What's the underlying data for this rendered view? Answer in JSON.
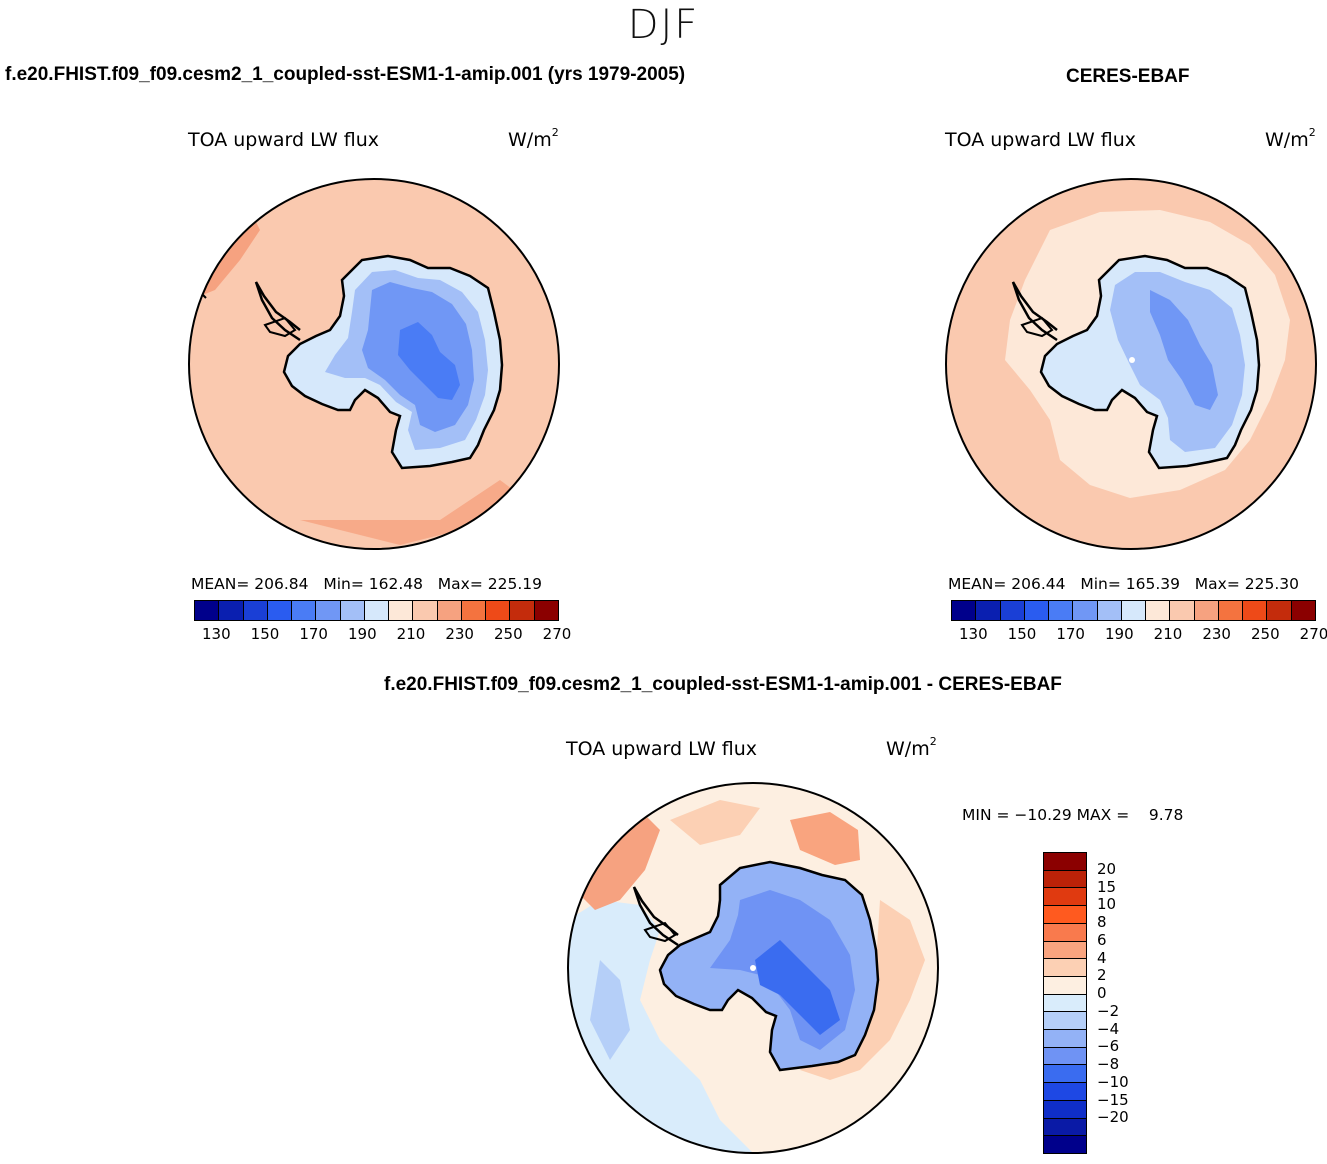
{
  "season": "DJF",
  "panels": {
    "model": {
      "title": "f.e20.FHIST.f09_f09.cesm2_1_coupled-sst-ESM1-1-amip.001 (yrs 1979-2005)",
      "variable": "TOA upward LW flux",
      "units_base": "W/m",
      "units_exp": "2",
      "mean_label": "MEAN=",
      "mean": "206.84",
      "min_label": "Min=",
      "min": "162.48",
      "max_label": "Max=",
      "max": "225.19"
    },
    "obs": {
      "title": "CERES-EBAF",
      "variable": "TOA upward LW flux",
      "units_base": "W/m",
      "units_exp": "2",
      "mean_label": "MEAN=",
      "mean": "206.44",
      "min_label": "Min=",
      "min": "165.39",
      "max_label": "Max=",
      "max": "225.30"
    },
    "diff": {
      "title": "f.e20.FHIST.f09_f09.cesm2_1_coupled-sst-ESM1-1-amip.001 - CERES-EBAF",
      "variable": "TOA upward LW flux",
      "units_base": "W/m",
      "units_exp": "2",
      "minmax_text": "MIN = −10.29 MAX =    9.78"
    }
  },
  "abs_colorbar": {
    "colors": [
      "#00008b",
      "#0a1fb0",
      "#1a3fd6",
      "#2a5cf0",
      "#4a7cf5",
      "#7097f5",
      "#a3bff7",
      "#d6e8fb",
      "#fde8d8",
      "#fac9af",
      "#f6a280",
      "#f4733f",
      "#ee4a18",
      "#c42c0c",
      "#8b0000"
    ],
    "ticks": [
      "130",
      "150",
      "170",
      "190",
      "210",
      "230",
      "250",
      "270"
    ]
  },
  "diff_colorbar": {
    "colors": [
      "#8b0000",
      "#bb2208",
      "#e03a10",
      "#ff5a1f",
      "#f97a4d",
      "#f9a47f",
      "#fcd0b4",
      "#fdefe1",
      "#d9ecfb",
      "#b5cff8",
      "#93b2f6",
      "#6f93f4",
      "#3a6cf0",
      "#1e48e4",
      "#0f2ec8",
      "#0a1aa6",
      "#00008b"
    ],
    "ticks": [
      "20",
      "15",
      "10",
      "8",
      "6",
      "4",
      "2",
      "0",
      "−2",
      "−4",
      "−6",
      "−8",
      "−10",
      "−15",
      "−20"
    ]
  },
  "colors": {
    "ocean_model": "#fac9af",
    "ocean_obs_outer": "#fac9af",
    "ocean_obs_inner": "#fde8d8",
    "continent_outer": "#d6e8fb",
    "continent_mid": "#a3bff7",
    "continent_inner": "#7097f5",
    "continent_core": "#4a7cf5",
    "diff_neutral": "#fdefe1",
    "diff_negative": "#d9ecfb",
    "diff_positive": "#fcd0b4",
    "diff_strong_neg": "#6f93f4"
  }
}
